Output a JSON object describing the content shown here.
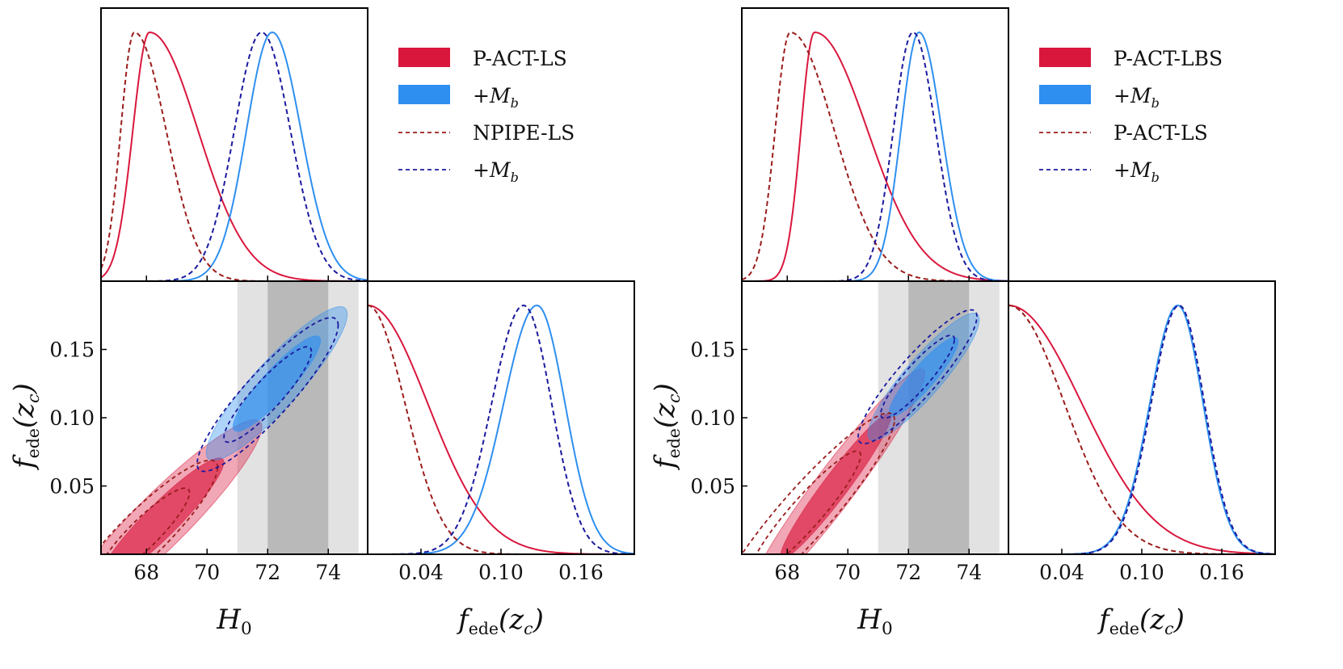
{
  "colors": {
    "baseline": "#d9173d",
    "mb": "#2e8ff0",
    "ref_baseline": "#9b1c1c",
    "ref_mb": "#1a1a9e",
    "band_inner": "#b9b9b9",
    "band_outer": "#e2e2e2"
  },
  "chart_data": [
    {
      "type": "triangle",
      "panel": "left",
      "legend": [
        {
          "label": "P-ACT-LS",
          "style": "filled",
          "color": "baseline"
        },
        {
          "label": "+M",
          "sub": "b",
          "style": "filled",
          "color": "mb"
        },
        {
          "label": "NPIPE-LS",
          "style": "dashed",
          "color": "ref_baseline"
        },
        {
          "label": "+M",
          "sub": "b",
          "style": "dashed",
          "color": "ref_mb"
        }
      ],
      "x_axis": {
        "label": "H",
        "label_sub": "0",
        "range": [
          66.5,
          75.3
        ],
        "ticks": [
          "68",
          "70",
          "72",
          "74"
        ]
      },
      "y_axis": {
        "label": "f",
        "label_sub": "ede",
        "label_arg": "(z",
        "label_arg_sub": "c",
        "range": [
          0.0,
          0.2
        ],
        "ticks": [
          "0.05",
          "0.10",
          "0.15"
        ]
      },
      "fede_axis": {
        "label": "f",
        "label_sub": "ede",
        "label_arg": "(z",
        "label_arg_sub": "c",
        "range": [
          0.0,
          0.2
        ],
        "ticks": [
          "0.04",
          "0.10",
          "0.16"
        ]
      },
      "band": {
        "inner": [
          72.0,
          74.0
        ],
        "outer": [
          71.0,
          75.0
        ]
      },
      "h0_1d": [
        {
          "series": "P-ACT-LS",
          "style": "solid",
          "color": "baseline",
          "peak": 68.1,
          "sigma_left": 0.55,
          "sigma_right": 1.6
        },
        {
          "series": "+M_b",
          "style": "solid",
          "color": "mb",
          "peak": 72.15,
          "sigma_left": 0.85,
          "sigma_right": 0.95
        },
        {
          "series": "NPIPE-LS",
          "style": "dashed",
          "color": "ref_baseline",
          "peak": 67.6,
          "sigma_left": 0.45,
          "sigma_right": 1.05
        },
        {
          "series": "+M_b",
          "style": "dashed",
          "color": "ref_mb",
          "peak": 71.8,
          "sigma_left": 0.9,
          "sigma_right": 0.95
        }
      ],
      "fede_1d": [
        {
          "series": "P-ACT-LS",
          "style": "solid",
          "color": "baseline",
          "peak": 0.0,
          "sigma_left": 0.01,
          "sigma_right": 0.045
        },
        {
          "series": "+M_b",
          "style": "solid",
          "color": "mb",
          "peak": 0.127,
          "sigma_left": 0.025,
          "sigma_right": 0.021
        },
        {
          "series": "NPIPE-LS",
          "style": "dashed",
          "color": "ref_baseline",
          "peak": 0.0,
          "sigma_left": 0.01,
          "sigma_right": 0.028
        },
        {
          "series": "+M_b",
          "style": "dashed",
          "color": "ref_mb",
          "peak": 0.117,
          "sigma_left": 0.024,
          "sigma_right": 0.021
        }
      ],
      "contours_2d": [
        {
          "series": "P-ACT-LS",
          "style": "filled",
          "color": "baseline",
          "center": [
            68.5,
            0.025
          ],
          "spread_h0": 1.35,
          "spread_fede": 0.03,
          "corr": 0.93
        },
        {
          "series": "+M_b",
          "style": "filled",
          "color": "mb",
          "center": [
            72.3,
            0.125
          ],
          "spread_h0": 0.95,
          "spread_fede": 0.023,
          "corr": 0.9
        },
        {
          "series": "NPIPE-LS",
          "style": "dashed",
          "color": "ref_baseline",
          "center": [
            67.9,
            0.015
          ],
          "spread_h0": 1.0,
          "spread_fede": 0.022,
          "corr": 0.9
        },
        {
          "series": "+M_b",
          "style": "dashed",
          "color": "ref_mb",
          "center": [
            72.0,
            0.117
          ],
          "spread_h0": 0.95,
          "spread_fede": 0.023,
          "corr": 0.9
        }
      ]
    },
    {
      "type": "triangle",
      "panel": "right",
      "legend": [
        {
          "label": "P-ACT-LBS",
          "style": "filled",
          "color": "baseline"
        },
        {
          "label": "+M",
          "sub": "b",
          "style": "filled",
          "color": "mb"
        },
        {
          "label": "P-ACT-LS",
          "style": "dashed",
          "color": "ref_baseline"
        },
        {
          "label": "+M",
          "sub": "b",
          "style": "dashed",
          "color": "ref_mb"
        }
      ],
      "x_axis": {
        "label": "H",
        "label_sub": "0",
        "range": [
          66.5,
          75.3
        ],
        "ticks": [
          "68",
          "70",
          "72",
          "74"
        ]
      },
      "y_axis": {
        "label": "f",
        "label_sub": "ede",
        "label_arg": "(z",
        "label_arg_sub": "c",
        "range": [
          0.0,
          0.2
        ],
        "ticks": [
          "0.05",
          "0.10",
          "0.15"
        ]
      },
      "fede_axis": {
        "label": "f",
        "label_sub": "ede",
        "label_arg": "(z",
        "label_arg_sub": "c",
        "range": [
          0.0,
          0.2
        ],
        "ticks": [
          "0.04",
          "0.10",
          "0.16"
        ]
      },
      "band": {
        "inner": [
          72.0,
          74.0
        ],
        "outer": [
          71.0,
          75.0
        ]
      },
      "h0_1d": [
        {
          "series": "P-ACT-LBS",
          "style": "solid",
          "color": "baseline",
          "peak": 68.9,
          "sigma_left": 0.45,
          "sigma_right": 1.75
        },
        {
          "series": "+M_b",
          "style": "solid",
          "color": "mb",
          "peak": 72.35,
          "sigma_left": 0.6,
          "sigma_right": 0.75
        },
        {
          "series": "P-ACT-LS",
          "style": "dashed",
          "color": "ref_baseline",
          "peak": 68.1,
          "sigma_left": 0.5,
          "sigma_right": 1.45
        },
        {
          "series": "+M_b",
          "style": "dashed",
          "color": "ref_mb",
          "peak": 72.15,
          "sigma_left": 0.65,
          "sigma_right": 0.75
        }
      ],
      "fede_1d": [
        {
          "series": "P-ACT-LBS",
          "style": "solid",
          "color": "baseline",
          "peak": 0.0,
          "sigma_left": 0.01,
          "sigma_right": 0.055
        },
        {
          "series": "+M_b",
          "style": "solid",
          "color": "mb",
          "peak": 0.127,
          "sigma_left": 0.021,
          "sigma_right": 0.019
        },
        {
          "series": "P-ACT-LS",
          "style": "dashed",
          "color": "ref_baseline",
          "peak": 0.0,
          "sigma_left": 0.01,
          "sigma_right": 0.042
        },
        {
          "series": "+M_b",
          "style": "dashed",
          "color": "ref_mb",
          "peak": 0.128,
          "sigma_left": 0.021,
          "sigma_right": 0.019
        }
      ],
      "contours_2d": [
        {
          "series": "P-ACT-LBS",
          "style": "filled",
          "color": "baseline",
          "center": [
            69.6,
            0.05
          ],
          "spread_h0": 1.2,
          "spread_fede": 0.035,
          "corr": 0.96
        },
        {
          "series": "+M_b",
          "style": "filled",
          "color": "mb",
          "center": [
            72.5,
            0.13
          ],
          "spread_h0": 0.75,
          "spread_fede": 0.019,
          "corr": 0.9
        },
        {
          "series": "P-ACT-LS",
          "style": "dashed",
          "color": "ref_baseline",
          "center": [
            68.6,
            0.03
          ],
          "spread_h0": 1.2,
          "spread_fede": 0.03,
          "corr": 0.93
        },
        {
          "series": "+M_b",
          "style": "dashed",
          "color": "ref_mb",
          "center": [
            72.3,
            0.13
          ],
          "spread_h0": 0.8,
          "spread_fede": 0.02,
          "corr": 0.9
        }
      ]
    }
  ]
}
